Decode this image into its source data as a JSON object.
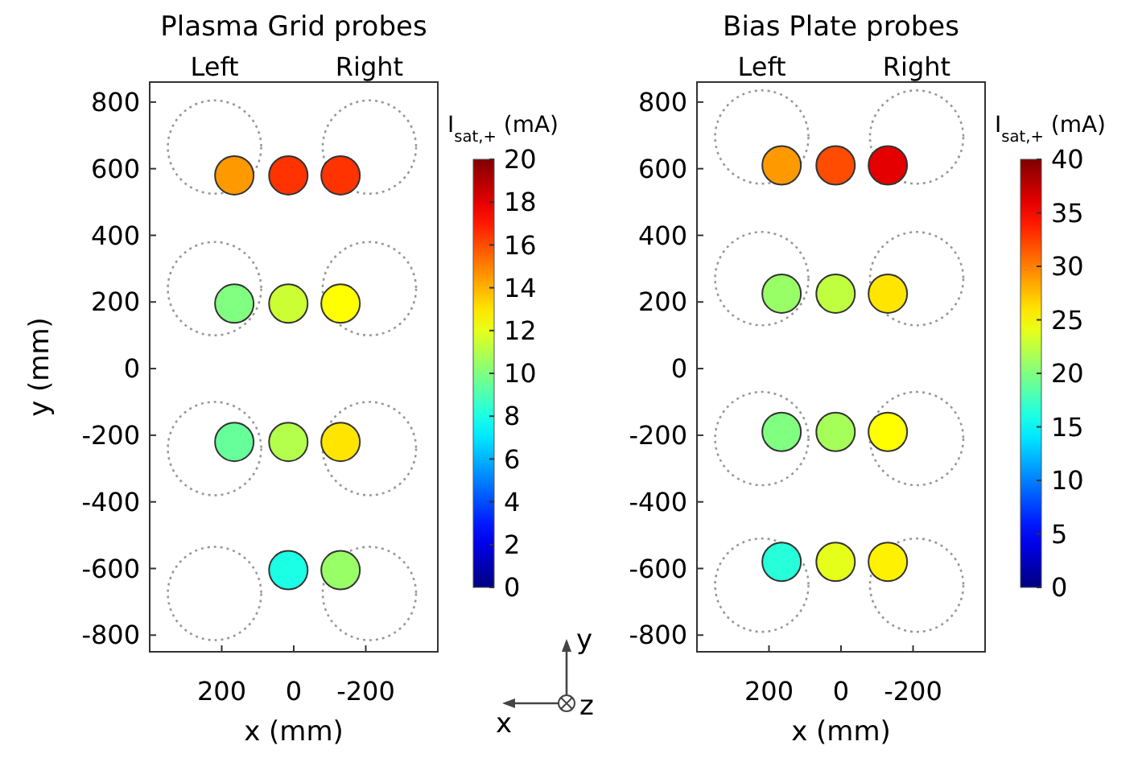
{
  "chart_data": [
    {
      "type": "scatter",
      "title": "Plasma Grid probes",
      "xlabel": "x (mm)",
      "ylabel": "y (mm)",
      "clabel": "I$_{sat,+}$ (mA)",
      "annotations": [
        "Left",
        "Right",
        "x",
        "y",
        "z"
      ],
      "x": [
        165,
        15,
        -130,
        165,
        15,
        -130,
        165,
        15,
        -130,
        15,
        -130
      ],
      "values": [
        580,
        580,
        580,
        195,
        195,
        195,
        -220,
        -220,
        -220,
        -605,
        -605
      ],
      "cvalues": [
        14.5,
        16.5,
        16.5,
        10,
        11.5,
        12.5,
        9.5,
        11,
        13,
        8,
        10.5
      ],
      "xlim": [
        400,
        -400
      ],
      "xticks": [
        200,
        0,
        -200
      ],
      "ylim": [
        -850,
        860
      ],
      "yticks": [
        -800,
        -600,
        -400,
        -200,
        0,
        200,
        400,
        600,
        800
      ],
      "clim": [
        0,
        20
      ],
      "cticks": [
        0,
        2,
        4,
        6,
        8,
        10,
        12,
        14,
        16,
        18,
        20
      ],
      "grid": false,
      "marker": "circle"
    },
    {
      "type": "scatter",
      "title": "Bias Plate probes",
      "xlabel": "x (mm)",
      "clabel": "I$_{sat,+}$ (mA)",
      "annotations": [
        "Left",
        "Right"
      ],
      "x": [
        165,
        15,
        -130,
        165,
        15,
        -130,
        165,
        15,
        -130,
        165,
        15,
        -130
      ],
      "values": [
        610,
        610,
        610,
        225,
        225,
        225,
        -190,
        -190,
        -190,
        -580,
        -580,
        -580
      ],
      "cvalues": [
        29,
        32,
        36,
        21,
        22.5,
        26,
        20,
        21.5,
        25,
        16.5,
        24,
        25.5
      ],
      "xlim": [
        400,
        -400
      ],
      "xticks": [
        200,
        0,
        -200
      ],
      "ylim": [
        -850,
        860
      ],
      "yticks": [
        -800,
        -600,
        -400,
        -200,
        0,
        200,
        400,
        600,
        800
      ],
      "clim": [
        0,
        40
      ],
      "cticks": [
        0,
        5,
        10,
        15,
        20,
        25,
        30,
        35,
        40
      ],
      "grid": false,
      "marker": "circle"
    }
  ]
}
